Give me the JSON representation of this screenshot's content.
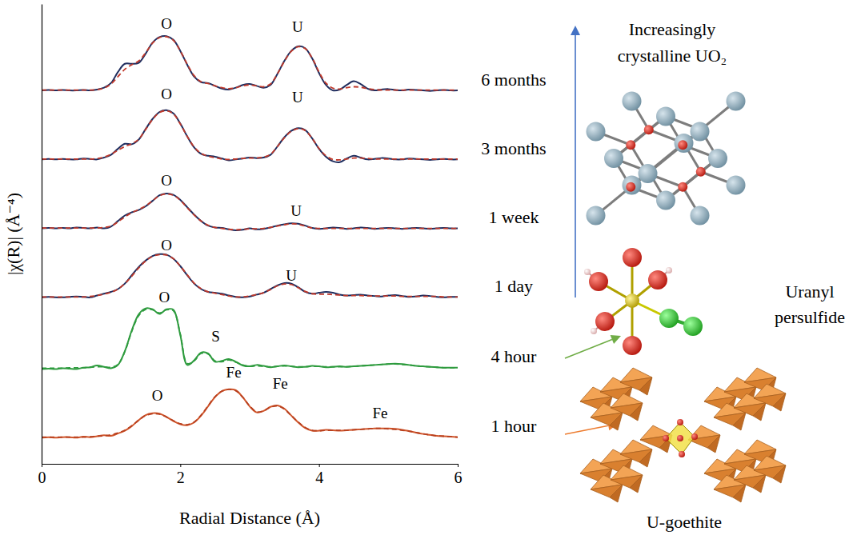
{
  "chart_data": {
    "type": "line",
    "x_label": "Radial Distance (Å)",
    "y_label": "|χ(R)| (Å⁻⁴)",
    "xlim": [
      0,
      6
    ],
    "xticks": [
      0,
      2,
      4,
      6
    ],
    "ylim": [
      0,
      10
    ],
    "yticks": [],
    "tick_labels": "x",
    "grid": false,
    "x": [
      0,
      0.1,
      0.2,
      0.3,
      0.4,
      0.5,
      0.6,
      0.7,
      0.8,
      0.9,
      1,
      1.1,
      1.2,
      1.3,
      1.4,
      1.5,
      1.6,
      1.7,
      1.8,
      1.9,
      2,
      2.1,
      2.2,
      2.3,
      2.4,
      2.5,
      2.6,
      2.7,
      2.8,
      2.9,
      3,
      3.1,
      3.2,
      3.3,
      3.4,
      3.5,
      3.6,
      3.7,
      3.8,
      3.9,
      4,
      4.1,
      4.2,
      4.3,
      4.4,
      4.5,
      4.6,
      4.7,
      4.8,
      4.9,
      5,
      5.1,
      5.2,
      5.3,
      5.4,
      5.5,
      5.6,
      5.7,
      5.8,
      5.9,
      6
    ],
    "series": [
      {
        "name": "1 hour",
        "color": "#d0552a",
        "line_style": "solid",
        "values": [
          0.57,
          0.58,
          0.57,
          0.58,
          0.58,
          0.57,
          0.59,
          0.58,
          0.6,
          0.62,
          0.61,
          0.66,
          0.72,
          0.82,
          0.95,
          1.06,
          1.1,
          1.09,
          1.02,
          0.93,
          0.86,
          0.84,
          0.9,
          1.05,
          1.25,
          1.45,
          1.58,
          1.62,
          1.6,
          1.45,
          1.25,
          1.12,
          1.15,
          1.24,
          1.27,
          1.2,
          1.05,
          0.9,
          0.78,
          0.72,
          0.72,
          0.74,
          0.73,
          0.72,
          0.73,
          0.74,
          0.75,
          0.76,
          0.77,
          0.77,
          0.77,
          0.76,
          0.74,
          0.71,
          0.68,
          0.65,
          0.63,
          0.61,
          0.6,
          0.59,
          0.58
        ]
      },
      {
        "color": "#b8401f",
        "line_style": "dashed",
        "values": [
          0.58,
          0.58,
          0.58,
          0.58,
          0.58,
          0.58,
          0.58,
          0.59,
          0.6,
          0.61,
          0.63,
          0.67,
          0.73,
          0.83,
          0.95,
          1.05,
          1.09,
          1.08,
          1.02,
          0.94,
          0.87,
          0.85,
          0.91,
          1.06,
          1.26,
          1.46,
          1.58,
          1.62,
          1.59,
          1.45,
          1.26,
          1.13,
          1.15,
          1.23,
          1.26,
          1.19,
          1.05,
          0.91,
          0.79,
          0.73,
          0.72,
          0.73,
          0.73,
          0.73,
          0.73,
          0.74,
          0.75,
          0.76,
          0.77,
          0.77,
          0.76,
          0.75,
          0.73,
          0.71,
          0.68,
          0.65,
          0.63,
          0.61,
          0.6,
          0.59,
          0.58
        ]
      },
      {
        "name": "4 hour",
        "color": "#2e9b3e",
        "line_style": "solid",
        "values": [
          2.06,
          2.07,
          2.06,
          2.08,
          2.07,
          2.06,
          2.09,
          2.1,
          2.14,
          2.11,
          2.08,
          2.15,
          2.45,
          2.9,
          3.25,
          3.38,
          3.36,
          3.26,
          3.36,
          3.35,
          2.8,
          2.15,
          2.25,
          2.42,
          2.4,
          2.22,
          2.24,
          2.28,
          2.22,
          2.14,
          2.12,
          2.15,
          2.13,
          2.1,
          2.12,
          2.14,
          2.12,
          2.1,
          2.11,
          2.13,
          2.12,
          2.1,
          2.11,
          2.12,
          2.11,
          2.12,
          2.13,
          2.14,
          2.15,
          2.16,
          2.17,
          2.18,
          2.17,
          2.15,
          2.13,
          2.12,
          2.11,
          2.1,
          2.09,
          2.09,
          2.09
        ]
      },
      {
        "color": "#2e9b3e",
        "line_style": "dashed",
        "values": [
          2.08,
          2.08,
          2.08,
          2.08,
          2.09,
          2.09,
          2.09,
          2.1,
          2.11,
          2.11,
          2.1,
          2.16,
          2.44,
          2.88,
          3.22,
          3.36,
          3.35,
          3.28,
          3.35,
          3.33,
          2.82,
          2.18,
          2.24,
          2.4,
          2.39,
          2.24,
          2.22,
          2.26,
          2.21,
          2.15,
          2.12,
          2.13,
          2.12,
          2.11,
          2.12,
          2.13,
          2.12,
          2.11,
          2.11,
          2.12,
          2.12,
          2.11,
          2.11,
          2.11,
          2.11,
          2.12,
          2.13,
          2.14,
          2.15,
          2.16,
          2.17,
          2.17,
          2.16,
          2.15,
          2.13,
          2.12,
          2.11,
          2.1,
          2.09,
          2.09,
          2.09
        ]
      },
      {
        "name": "1 day",
        "color": "#1f2d5e",
        "line_style": "solid",
        "values": [
          3.62,
          3.63,
          3.62,
          3.62,
          3.63,
          3.64,
          3.63,
          3.62,
          3.66,
          3.7,
          3.74,
          3.8,
          3.92,
          4.1,
          4.28,
          4.42,
          4.52,
          4.56,
          4.55,
          4.46,
          4.3,
          4.1,
          3.92,
          3.8,
          3.74,
          3.72,
          3.7,
          3.66,
          3.63,
          3.62,
          3.64,
          3.68,
          3.72,
          3.8,
          3.88,
          3.93,
          3.92,
          3.84,
          3.74,
          3.7,
          3.72,
          3.74,
          3.72,
          3.68,
          3.66,
          3.67,
          3.68,
          3.66,
          3.65,
          3.64,
          3.66,
          3.67,
          3.65,
          3.63,
          3.64,
          3.66,
          3.65,
          3.63,
          3.62,
          3.63,
          3.63
        ]
      },
      {
        "color": "#c0392b",
        "line_style": "dashed",
        "values": [
          3.63,
          3.63,
          3.63,
          3.63,
          3.63,
          3.63,
          3.63,
          3.64,
          3.66,
          3.69,
          3.73,
          3.8,
          3.92,
          4.08,
          4.26,
          4.41,
          4.51,
          4.55,
          4.54,
          4.46,
          4.3,
          4.11,
          3.93,
          3.81,
          3.74,
          3.71,
          3.68,
          3.65,
          3.63,
          3.63,
          3.65,
          3.68,
          3.72,
          3.79,
          3.87,
          3.91,
          3.9,
          3.83,
          3.75,
          3.7,
          3.69,
          3.69,
          3.68,
          3.67,
          3.66,
          3.66,
          3.66,
          3.65,
          3.65,
          3.65,
          3.65,
          3.65,
          3.64,
          3.64,
          3.64,
          3.64,
          3.64,
          3.64,
          3.63,
          3.63,
          3.63
        ]
      },
      {
        "name": "1 week",
        "color": "#1f2d5e",
        "line_style": "solid",
        "values": [
          5.12,
          5.13,
          5.12,
          5.13,
          5.12,
          5.14,
          5.13,
          5.12,
          5.14,
          5.12,
          5.16,
          5.28,
          5.4,
          5.47,
          5.52,
          5.6,
          5.72,
          5.84,
          5.88,
          5.85,
          5.74,
          5.58,
          5.42,
          5.28,
          5.18,
          5.14,
          5.13,
          5.1,
          5.08,
          5.09,
          5.12,
          5.1,
          5.11,
          5.14,
          5.18,
          5.21,
          5.23,
          5.22,
          5.18,
          5.13,
          5.11,
          5.12,
          5.14,
          5.13,
          5.11,
          5.12,
          5.14,
          5.13,
          5.11,
          5.12,
          5.13,
          5.12,
          5.11,
          5.12,
          5.13,
          5.12,
          5.11,
          5.12,
          5.13,
          5.12,
          5.12
        ]
      },
      {
        "color": "#c0392b",
        "line_style": "dashed",
        "values": [
          5.13,
          5.13,
          5.13,
          5.13,
          5.13,
          5.13,
          5.13,
          5.13,
          5.13,
          5.14,
          5.17,
          5.26,
          5.37,
          5.46,
          5.53,
          5.61,
          5.72,
          5.83,
          5.87,
          5.84,
          5.73,
          5.57,
          5.41,
          5.28,
          5.19,
          5.14,
          5.12,
          5.1,
          5.09,
          5.1,
          5.11,
          5.11,
          5.12,
          5.14,
          5.17,
          5.2,
          5.22,
          5.21,
          5.17,
          5.13,
          5.12,
          5.12,
          5.12,
          5.12,
          5.12,
          5.12,
          5.12,
          5.12,
          5.12,
          5.12,
          5.12,
          5.12,
          5.12,
          5.12,
          5.12,
          5.12,
          5.12,
          5.12,
          5.12,
          5.12,
          5.12
        ]
      },
      {
        "name": "3 months",
        "color": "#1f2d5e",
        "line_style": "solid",
        "values": [
          6.62,
          6.63,
          6.62,
          6.63,
          6.62,
          6.62,
          6.64,
          6.63,
          6.62,
          6.66,
          6.72,
          6.85,
          6.96,
          6.95,
          7.05,
          7.28,
          7.5,
          7.65,
          7.69,
          7.62,
          7.4,
          7.12,
          6.88,
          6.74,
          6.7,
          6.68,
          6.64,
          6.6,
          6.62,
          6.64,
          6.66,
          6.65,
          6.66,
          6.72,
          6.9,
          7.1,
          7.24,
          7.3,
          7.26,
          7.08,
          6.85,
          6.68,
          6.58,
          6.56,
          6.64,
          6.7,
          6.66,
          6.62,
          6.63,
          6.65,
          6.64,
          6.62,
          6.62,
          6.64,
          6.63,
          6.62,
          6.61,
          6.62,
          6.63,
          6.62,
          6.62
        ]
      },
      {
        "color": "#c0392b",
        "line_style": "dashed",
        "values": [
          6.63,
          6.63,
          6.63,
          6.63,
          6.63,
          6.63,
          6.63,
          6.63,
          6.64,
          6.67,
          6.73,
          6.82,
          6.9,
          6.96,
          7.06,
          7.27,
          7.49,
          7.64,
          7.68,
          7.61,
          7.39,
          7.12,
          6.89,
          6.75,
          6.69,
          6.66,
          6.63,
          6.62,
          6.63,
          6.64,
          6.65,
          6.65,
          6.67,
          6.73,
          6.9,
          7.09,
          7.23,
          7.29,
          7.25,
          7.08,
          6.86,
          6.7,
          6.62,
          6.61,
          6.63,
          6.65,
          6.65,
          6.64,
          6.63,
          6.63,
          6.63,
          6.63,
          6.63,
          6.63,
          6.63,
          6.63,
          6.63,
          6.63,
          6.63,
          6.63,
          6.63
        ]
      },
      {
        "name": "6 months",
        "color": "#1f2d5e",
        "line_style": "solid",
        "values": [
          8.12,
          8.13,
          8.12,
          8.13,
          8.12,
          8.12,
          8.13,
          8.12,
          8.14,
          8.18,
          8.28,
          8.52,
          8.7,
          8.7,
          8.72,
          8.92,
          9.16,
          9.28,
          9.3,
          9.22,
          8.98,
          8.68,
          8.42,
          8.3,
          8.28,
          8.22,
          8.16,
          8.14,
          8.18,
          8.24,
          8.26,
          8.22,
          8.18,
          8.24,
          8.48,
          8.76,
          8.98,
          9.08,
          9.04,
          8.82,
          8.5,
          8.24,
          8.12,
          8.14,
          8.24,
          8.32,
          8.26,
          8.16,
          8.12,
          8.14,
          8.15,
          8.13,
          8.12,
          8.14,
          8.13,
          8.12,
          8.11,
          8.12,
          8.13,
          8.12,
          8.12
        ]
      },
      {
        "color": "#c0392b",
        "line_style": "dashed",
        "values": [
          8.13,
          8.13,
          8.13,
          8.13,
          8.13,
          8.13,
          8.13,
          8.13,
          8.14,
          8.17,
          8.26,
          8.42,
          8.58,
          8.68,
          8.76,
          8.94,
          9.15,
          9.27,
          9.29,
          9.21,
          8.98,
          8.69,
          8.44,
          8.31,
          8.27,
          8.22,
          8.18,
          8.16,
          8.18,
          8.22,
          8.24,
          8.22,
          8.2,
          8.26,
          8.48,
          8.75,
          8.97,
          9.07,
          9.03,
          8.83,
          8.52,
          8.28,
          8.17,
          8.15,
          8.18,
          8.2,
          8.19,
          8.16,
          8.14,
          8.13,
          8.13,
          8.13,
          8.13,
          8.13,
          8.13,
          8.13,
          8.13,
          8.13,
          8.13,
          8.13,
          8.13
        ]
      }
    ],
    "annotations": [
      {
        "text": "O",
        "x": 1.8,
        "y": 9.57
      },
      {
        "text": "U",
        "x": 3.69,
        "y": 9.5
      },
      {
        "text": "O",
        "x": 1.8,
        "y": 8.05
      },
      {
        "text": "U",
        "x": 3.69,
        "y": 7.97
      },
      {
        "text": "O",
        "x": 1.8,
        "y": 6.16
      },
      {
        "text": "U",
        "x": 3.67,
        "y": 5.5
      },
      {
        "text": "O",
        "x": 1.8,
        "y": 4.75
      },
      {
        "text": "U",
        "x": 3.6,
        "y": 4.09
      },
      {
        "text": "O",
        "x": 1.77,
        "y": 3.62
      },
      {
        "text": "S",
        "x": 2.51,
        "y": 2.78
      },
      {
        "text": "O",
        "x": 1.67,
        "y": 1.48
      },
      {
        "text": "Fe",
        "x": 2.77,
        "y": 2.0
      },
      {
        "text": "Fe",
        "x": 3.44,
        "y": 1.74
      },
      {
        "text": "Fe",
        "x": 4.88,
        "y": 1.11
      }
    ],
    "structures": [
      "Increasingly crystalline UO₂",
      "Uranyl persulfide",
      "U-goethite"
    ]
  }
}
